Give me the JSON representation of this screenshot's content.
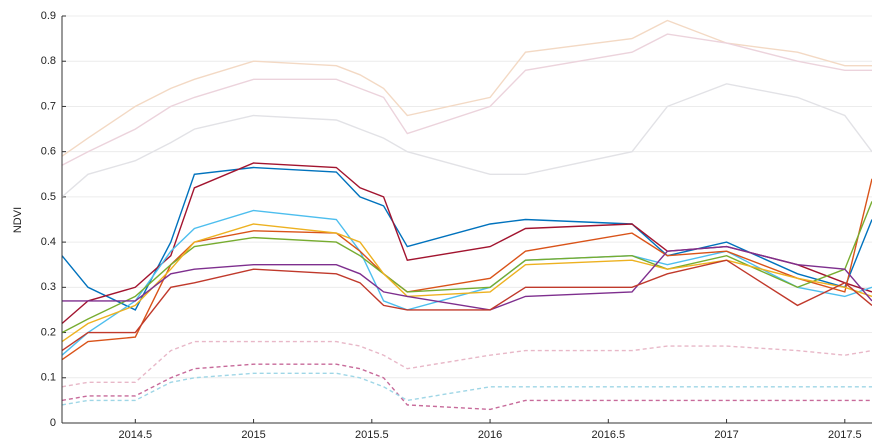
{
  "chart_data": {
    "type": "line",
    "ylabel": "NDVI",
    "x": [
      2014.19,
      2014.3,
      2014.5,
      2014.65,
      2014.75,
      2015,
      2015.35,
      2015.45,
      2015.55,
      2015.65,
      2016,
      2016.15,
      2016.6,
      2016.75,
      2017,
      2017.3,
      2017.5,
      2017.615
    ],
    "xlim": [
      2014.19,
      2017.615
    ],
    "xticks": [
      2014.5,
      2015,
      2015.5,
      2016,
      2016.5,
      2017,
      2017.5
    ],
    "ylim": [
      0,
      0.9
    ],
    "yticks": [
      0,
      0.1,
      0.2,
      0.3,
      0.4,
      0.5,
      0.6,
      0.7,
      0.8,
      0.9
    ],
    "grid": true,
    "series": [
      {
        "color": "#f3d9c4",
        "style": "solid",
        "values": [
          0.59,
          0.63,
          0.7,
          0.74,
          0.76,
          0.8,
          0.79,
          0.77,
          0.74,
          0.68,
          0.72,
          0.82,
          0.85,
          0.89,
          0.84,
          0.82,
          0.79,
          0.79
        ]
      },
      {
        "color": "#ecd3dc",
        "style": "solid",
        "values": [
          0.57,
          0.6,
          0.65,
          0.7,
          0.72,
          0.76,
          0.76,
          0.74,
          0.72,
          0.64,
          0.7,
          0.78,
          0.82,
          0.86,
          0.84,
          0.8,
          0.78,
          0.78
        ]
      },
      {
        "color": "#e2e2e6",
        "style": "solid",
        "values": [
          0.5,
          0.55,
          0.58,
          0.62,
          0.65,
          0.68,
          0.67,
          0.65,
          0.63,
          0.6,
          0.55,
          0.55,
          0.6,
          0.7,
          0.75,
          0.72,
          0.68,
          0.6
        ]
      },
      {
        "color": "#e8b8c8",
        "style": "dashed",
        "values": [
          0.08,
          0.09,
          0.09,
          0.16,
          0.18,
          0.18,
          0.18,
          0.17,
          0.15,
          0.12,
          0.15,
          0.16,
          0.16,
          0.17,
          0.17,
          0.16,
          0.15,
          0.16
        ]
      },
      {
        "color": "#c76a9a",
        "style": "dashed",
        "values": [
          0.05,
          0.06,
          0.06,
          0.1,
          0.12,
          0.13,
          0.13,
          0.12,
          0.1,
          0.04,
          0.03,
          0.05,
          0.05,
          0.05,
          0.05,
          0.05,
          0.05,
          0.05
        ]
      },
      {
        "color": "#9fd6e6",
        "style": "dashed",
        "values": [
          0.04,
          0.05,
          0.05,
          0.09,
          0.1,
          0.11,
          0.11,
          0.1,
          0.08,
          0.05,
          0.08,
          0.08,
          0.08,
          0.08,
          0.08,
          0.08,
          0.08,
          0.08
        ]
      },
      {
        "color": "#0072bd",
        "style": "solid",
        "values": [
          0.37,
          0.3,
          0.25,
          0.4,
          0.55,
          0.565,
          0.555,
          0.5,
          0.48,
          0.39,
          0.44,
          0.45,
          0.44,
          0.37,
          0.4,
          0.33,
          0.3,
          0.45
        ]
      },
      {
        "color": "#a2142f",
        "style": "solid",
        "values": [
          0.22,
          0.27,
          0.3,
          0.37,
          0.52,
          0.575,
          0.565,
          0.52,
          0.5,
          0.36,
          0.39,
          0.43,
          0.44,
          0.38,
          0.39,
          0.35,
          0.31,
          0.29
        ]
      },
      {
        "color": "#4dbeee",
        "style": "solid",
        "values": [
          0.15,
          0.2,
          0.27,
          0.38,
          0.43,
          0.47,
          0.45,
          0.38,
          0.27,
          0.25,
          0.3,
          0.36,
          0.37,
          0.35,
          0.38,
          0.3,
          0.28,
          0.3
        ]
      },
      {
        "color": "#d95319",
        "style": "solid",
        "values": [
          0.14,
          0.18,
          0.19,
          0.35,
          0.4,
          0.425,
          0.42,
          0.38,
          0.33,
          0.29,
          0.32,
          0.38,
          0.42,
          0.37,
          0.38,
          0.32,
          0.29,
          0.54
        ]
      },
      {
        "color": "#77ac30",
        "style": "solid",
        "values": [
          0.2,
          0.23,
          0.28,
          0.35,
          0.39,
          0.41,
          0.4,
          0.37,
          0.33,
          0.29,
          0.3,
          0.36,
          0.37,
          0.34,
          0.37,
          0.3,
          0.34,
          0.49
        ]
      },
      {
        "color": "#edb120",
        "style": "solid",
        "values": [
          0.18,
          0.22,
          0.26,
          0.34,
          0.4,
          0.44,
          0.42,
          0.4,
          0.33,
          0.28,
          0.29,
          0.35,
          0.36,
          0.34,
          0.36,
          0.32,
          0.3,
          0.28
        ]
      },
      {
        "color": "#7e2f8e",
        "style": "solid",
        "values": [
          0.27,
          0.27,
          0.27,
          0.33,
          0.34,
          0.35,
          0.35,
          0.33,
          0.29,
          0.28,
          0.25,
          0.28,
          0.29,
          0.38,
          0.39,
          0.35,
          0.34,
          0.27
        ]
      },
      {
        "color": "#c0392b",
        "style": "solid",
        "values": [
          0.16,
          0.2,
          0.2,
          0.3,
          0.31,
          0.34,
          0.33,
          0.31,
          0.26,
          0.25,
          0.25,
          0.3,
          0.3,
          0.33,
          0.36,
          0.26,
          0.31,
          0.26
        ]
      }
    ]
  }
}
